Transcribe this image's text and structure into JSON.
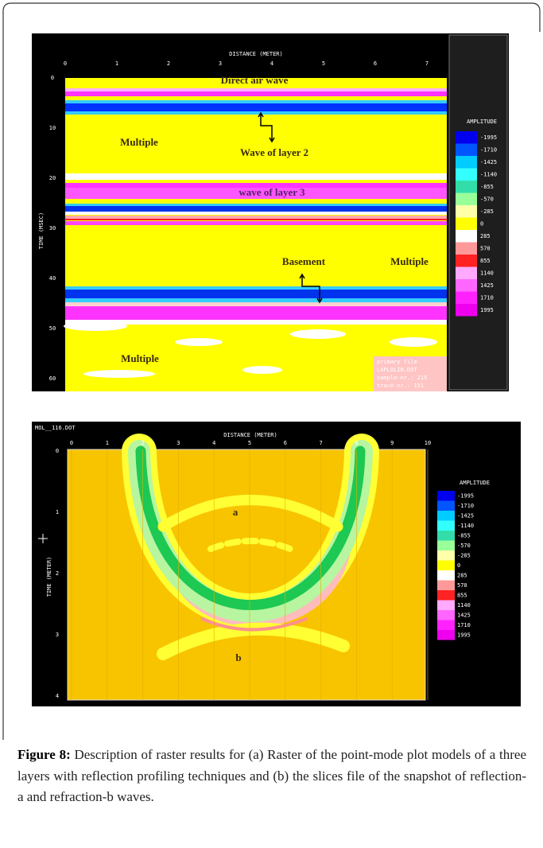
{
  "figure": {
    "panel_a": {
      "x_axis_label": "DISTANCE (METER)",
      "y_axis_label": "TIME (MSEC)",
      "xticks": [
        "0",
        "1",
        "2",
        "3",
        "4",
        "5",
        "6",
        "7"
      ],
      "yticks": [
        "0",
        "10",
        "20",
        "30",
        "40",
        "50",
        "60"
      ],
      "annotations": [
        "Direct air wave",
        "Multiple",
        "Wave of layer 2",
        "wave of layer 3",
        "Basement",
        "Multiple",
        "Multiple"
      ],
      "legend_title": "AMPLITUDE",
      "legend_labels": [
        "-1995",
        "-1710",
        "-1425",
        "-1140",
        "-855",
        "-570",
        "-285",
        "0",
        "285",
        "570",
        "855",
        "1140",
        "1425",
        "1710",
        "1995"
      ],
      "info_box": [
        "primary file",
        "LAPLOLIN.DOT",
        "sample-nr.: 215",
        "trace-nr.: 151"
      ]
    },
    "panel_b": {
      "file_name": "MOL__116.DOT",
      "x_axis_label": "DISTANCE (METER)",
      "y_axis_label": "TIME (METER)",
      "xticks": [
        "0",
        "1",
        "2",
        "3",
        "4",
        "5",
        "6",
        "7",
        "8",
        "9",
        "10"
      ],
      "yticks": [
        "0",
        "1",
        "2",
        "3",
        "4"
      ],
      "annotations": [
        "a",
        "b"
      ],
      "legend_title": "AMPLITUDE",
      "legend_labels": [
        "-1995",
        "-1710",
        "-1425",
        "-1140",
        "-855",
        "-570",
        "-285",
        "0",
        "285",
        "570",
        "855",
        "1140",
        "1425",
        "1710",
        "1995"
      ]
    }
  },
  "caption": {
    "label": "Figure 8:",
    "text": "Description of raster results for (a) Raster of the point-mode plot models of a three layers with reflection profiling techniques and (b) the slices file of the snapshot of reflection-a and refraction-b waves."
  }
}
